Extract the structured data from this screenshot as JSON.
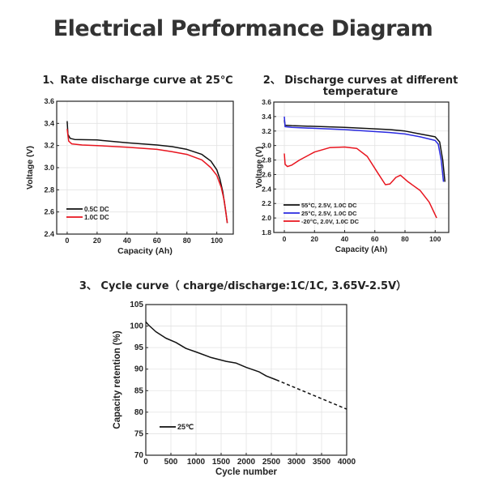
{
  "title": "Electrical Performance Diagram",
  "chart_data": [
    {
      "type": "line",
      "title": "1、Rate discharge curve at 25℃",
      "xlabel": "Capacity (Ah)",
      "ylabel": "Voltage (V)",
      "xlim": [
        -7,
        111
      ],
      "ylim": [
        2.4,
        3.6
      ],
      "xticks": [
        "0",
        "20",
        "40",
        "60",
        "80",
        "100"
      ],
      "yticks": [
        "2.4",
        "2.6",
        "2.8",
        "3.0",
        "3.2",
        "3.4",
        "3.6"
      ],
      "grid": true,
      "legend": "bottom-left",
      "series": [
        {
          "name": "0.5C DC",
          "color": "#111111",
          "dashed": false,
          "points": [
            [
              0,
              3.42
            ],
            [
              0.5,
              3.3
            ],
            [
              2,
              3.265
            ],
            [
              5,
              3.255
            ],
            [
              20,
              3.25
            ],
            [
              40,
              3.225
            ],
            [
              60,
              3.205
            ],
            [
              70,
              3.19
            ],
            [
              80,
              3.165
            ],
            [
              90,
              3.12
            ],
            [
              96,
              3.06
            ],
            [
              100,
              2.98
            ],
            [
              102,
              2.9
            ],
            [
              104,
              2.78
            ],
            [
              106,
              2.6
            ],
            [
              107,
              2.5
            ]
          ]
        },
        {
          "name": "1.0C DC",
          "color": "#e8141e",
          "dashed": false,
          "points": [
            [
              0,
              3.35
            ],
            [
              1,
              3.24
            ],
            [
              3,
              3.215
            ],
            [
              10,
              3.205
            ],
            [
              20,
              3.2
            ],
            [
              40,
              3.185
            ],
            [
              60,
              3.165
            ],
            [
              70,
              3.145
            ],
            [
              80,
              3.12
            ],
            [
              90,
              3.07
            ],
            [
              96,
              3.0
            ],
            [
              100,
              2.93
            ],
            [
              103,
              2.82
            ],
            [
              105,
              2.7
            ],
            [
              107,
              2.5
            ]
          ]
        }
      ]
    },
    {
      "type": "line",
      "title": "2、 Discharge curves at different temperature",
      "xlabel": "Capacity (Ah)",
      "ylabel": "Voltage (V)",
      "xlim": [
        -7,
        109
      ],
      "ylim": [
        1.8,
        3.6
      ],
      "xticks": [
        "0",
        "20",
        "40",
        "60",
        "80",
        "100"
      ],
      "yticks": [
        "1.8",
        "2.0",
        "2.2",
        "2.4",
        "2.6",
        "2.8",
        "3.0",
        "3.2",
        "3.4",
        "3.6"
      ],
      "grid": true,
      "legend": "bottom-left",
      "series": [
        {
          "name": "55°C, 2.5V, 1.0C DC",
          "color": "#111111",
          "dashed": false,
          "points": [
            [
              0,
              3.35
            ],
            [
              0.5,
              3.28
            ],
            [
              5,
              3.275
            ],
            [
              40,
              3.25
            ],
            [
              70,
              3.22
            ],
            [
              80,
              3.2
            ],
            [
              90,
              3.16
            ],
            [
              100,
              3.12
            ],
            [
              103,
              3.05
            ],
            [
              105,
              2.8
            ],
            [
              106.5,
              2.5
            ]
          ]
        },
        {
          "name": "25°C, 2.5V, 1.0C DC",
          "color": "#2a2ae0",
          "dashed": false,
          "points": [
            [
              0,
              3.4
            ],
            [
              0.5,
              3.26
            ],
            [
              5,
              3.25
            ],
            [
              40,
              3.22
            ],
            [
              70,
              3.18
            ],
            [
              80,
              3.16
            ],
            [
              90,
              3.12
            ],
            [
              100,
              3.07
            ],
            [
              102,
              3.02
            ],
            [
              104,
              2.8
            ],
            [
              105.5,
              2.5
            ]
          ]
        },
        {
          "name": "-20°C, 2.0V, 1.0C DC",
          "color": "#e8141e",
          "dashed": false,
          "points": [
            [
              0,
              2.89
            ],
            [
              0.5,
              2.74
            ],
            [
              2,
              2.71
            ],
            [
              5,
              2.73
            ],
            [
              10,
              2.8
            ],
            [
              20,
              2.91
            ],
            [
              30,
              2.97
            ],
            [
              40,
              2.98
            ],
            [
              48,
              2.96
            ],
            [
              55,
              2.85
            ],
            [
              62,
              2.62
            ],
            [
              67,
              2.46
            ],
            [
              70,
              2.47
            ],
            [
              74,
              2.56
            ],
            [
              77,
              2.59
            ],
            [
              82,
              2.5
            ],
            [
              90,
              2.38
            ],
            [
              96,
              2.22
            ],
            [
              101,
              2.0
            ]
          ]
        }
      ]
    },
    {
      "type": "line",
      "title": "3、 Cycle curve（ charge/discharge:1C/1C, 3.65V-2.5V）",
      "xlabel": "Cycle number",
      "ylabel": "Capacity retention (%)",
      "xlim": [
        0,
        4000
      ],
      "ylim": [
        70,
        105
      ],
      "xticks": [
        "0",
        "500",
        "1000",
        "1500",
        "2000",
        "2500",
        "3000",
        "3500",
        "4000"
      ],
      "yticks": [
        "70",
        "75",
        "80",
        "85",
        "90",
        "95",
        "100",
        "105"
      ],
      "grid": true,
      "legend": "bottom-left",
      "series": [
        {
          "name": "25℃",
          "color": "#111111",
          "dashed": false,
          "points": [
            [
              0,
              101
            ],
            [
              50,
              100.3
            ],
            [
              200,
              98.7
            ],
            [
              400,
              97.2
            ],
            [
              600,
              96.2
            ],
            [
              800,
              94.8
            ],
            [
              1000,
              94.0
            ],
            [
              1300,
              92.7
            ],
            [
              1600,
              91.8
            ],
            [
              1800,
              91.4
            ],
            [
              2000,
              90.4
            ],
            [
              2250,
              89.4
            ],
            [
              2400,
              88.4
            ],
            [
              2600,
              87.5
            ]
          ]
        },
        {
          "name": "",
          "color": "#111111",
          "dashed": true,
          "points": [
            [
              2600,
              87.5
            ],
            [
              4000,
              80.7
            ]
          ]
        }
      ]
    }
  ]
}
